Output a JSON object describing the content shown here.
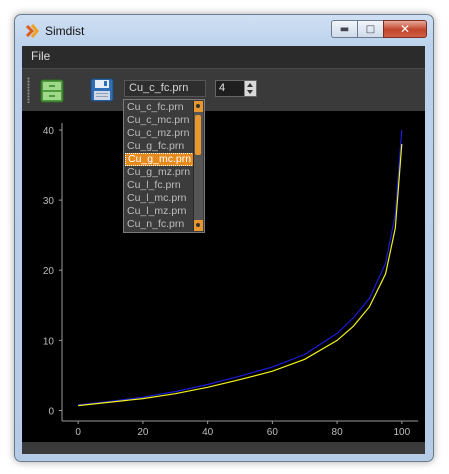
{
  "window": {
    "title": "Simdist"
  },
  "menu": {
    "file": "File"
  },
  "toolbar": {
    "open_icon": "open-file-icon",
    "save_icon": "floppy-save-icon",
    "combo_value": "Cu_c_fc.prn",
    "spin_value": "4"
  },
  "dropdown": {
    "items": [
      "Cu_c_fc.prn",
      "Cu_c_mc.prn",
      "Cu_c_mz.prn",
      "Cu_g_fc.prn",
      "Cu_g_mc.prn",
      "Cu_g_mz.prn",
      "Cu_l_fc.prn",
      "Cu_l_mc.prn",
      "Cu_l_mz.prn",
      "Cu_n_fc.prn"
    ],
    "selected": "Cu_g_mc.prn"
  },
  "colors": {
    "selection": "#e68a1e",
    "series_blue": "#1c1cd6",
    "series_yellow": "#f2f21a"
  },
  "chart_data": {
    "type": "line",
    "title": "",
    "xlabel": "",
    "ylabel": "",
    "xlim": [
      -5,
      105
    ],
    "ylim": [
      -1.5,
      41
    ],
    "x_ticks": [
      0,
      20,
      40,
      60,
      80,
      100
    ],
    "y_ticks": [
      0,
      10,
      20,
      30,
      40
    ],
    "grid": false,
    "series": [
      {
        "color": "#1c1cd6",
        "x": [
          0,
          10,
          20,
          30,
          40,
          50,
          60,
          70,
          80,
          85,
          90,
          95,
          98,
          100
        ],
        "y": [
          0.8,
          1.3,
          1.9,
          2.7,
          3.7,
          4.9,
          6.2,
          8.0,
          11.0,
          13.2,
          16.0,
          21.0,
          28.0,
          40.0
        ]
      },
      {
        "color": "#f2f21a",
        "x": [
          0,
          10,
          20,
          30,
          40,
          50,
          60,
          70,
          80,
          85,
          90,
          95,
          98,
          100
        ],
        "y": [
          0.7,
          1.2,
          1.7,
          2.4,
          3.3,
          4.4,
          5.6,
          7.3,
          10.0,
          12.0,
          14.8,
          19.5,
          26.0,
          38.0
        ]
      }
    ]
  }
}
